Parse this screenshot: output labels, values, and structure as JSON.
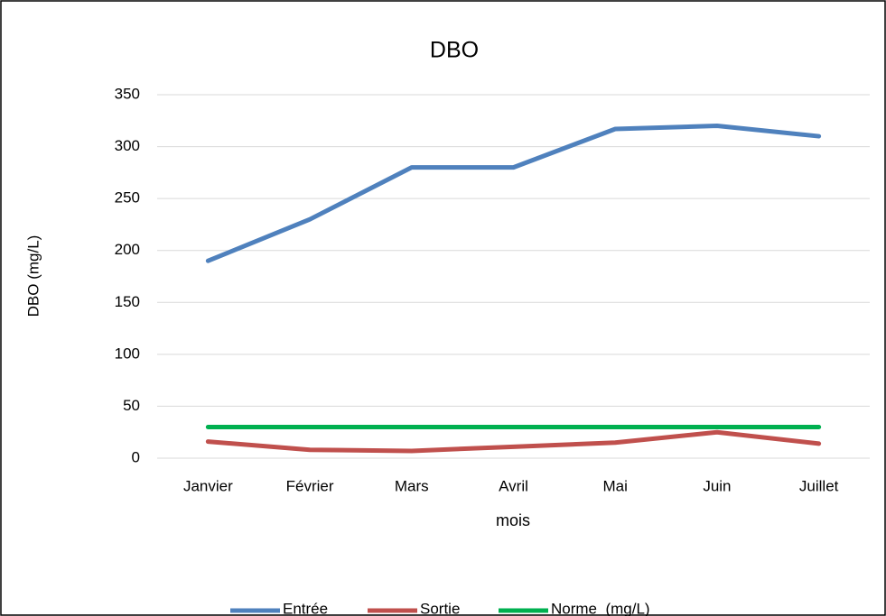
{
  "chart_data": {
    "type": "line",
    "title": "DBO",
    "y_label": "DBO (mg/L)",
    "x_label": "mois",
    "categories": [
      "Janvier",
      "Février",
      "Mars",
      "Avril",
      "Mai",
      "Juin",
      "Juillet"
    ],
    "series": [
      {
        "name": "Entrée",
        "color": "#4f81bd",
        "values": [
          190,
          230,
          280,
          280,
          317,
          320,
          310
        ]
      },
      {
        "name": "Sortie",
        "color": "#c0504d",
        "values": [
          16,
          8,
          7,
          11,
          15,
          25,
          14
        ]
      },
      {
        "name": "Norme  (mg/L)",
        "color": "#00b050",
        "values": [
          30,
          30,
          30,
          30,
          30,
          30,
          30
        ]
      }
    ],
    "ylim": [
      0,
      350
    ],
    "yticks": [
      0,
      50,
      100,
      150,
      200,
      250,
      300,
      350
    ],
    "grid": true,
    "legend": "bottom"
  }
}
